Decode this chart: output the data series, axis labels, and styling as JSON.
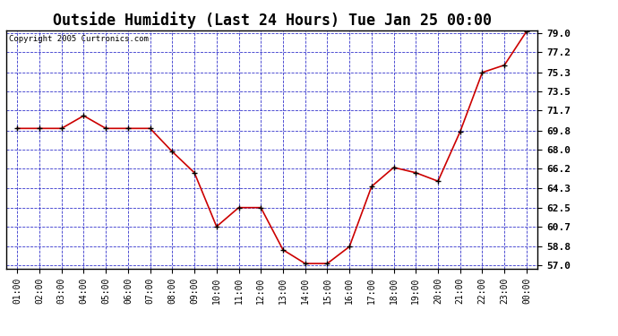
{
  "title": "Outside Humidity (Last 24 Hours) Tue Jan 25 00:00",
  "copyright": "Copyright 2005 Curtronics.com",
  "x_labels": [
    "01:00",
    "02:00",
    "03:00",
    "04:00",
    "05:00",
    "06:00",
    "07:00",
    "08:00",
    "09:00",
    "10:00",
    "11:00",
    "12:00",
    "13:00",
    "14:00",
    "15:00",
    "16:00",
    "17:00",
    "18:00",
    "19:00",
    "20:00",
    "21:00",
    "22:00",
    "23:00",
    "00:00"
  ],
  "y_values": [
    70.0,
    70.0,
    70.0,
    71.2,
    70.0,
    70.0,
    70.0,
    67.8,
    65.8,
    60.7,
    62.5,
    62.5,
    58.5,
    57.2,
    57.2,
    58.8,
    64.5,
    66.3,
    65.8,
    65.0,
    69.7,
    75.3,
    76.0,
    79.2
  ],
  "line_color": "#cc0000",
  "marker_color": "#000000",
  "fig_bg_color": "#ffffff",
  "plot_bg_color": "#ffffff",
  "grid_color": "#3333cc",
  "title_fontsize": 12,
  "ylim_min": 57.0,
  "ylim_max": 79.0,
  "y_ticks": [
    57.0,
    58.8,
    60.7,
    62.5,
    64.3,
    66.2,
    68.0,
    69.8,
    71.7,
    73.5,
    75.3,
    77.2,
    79.0
  ]
}
